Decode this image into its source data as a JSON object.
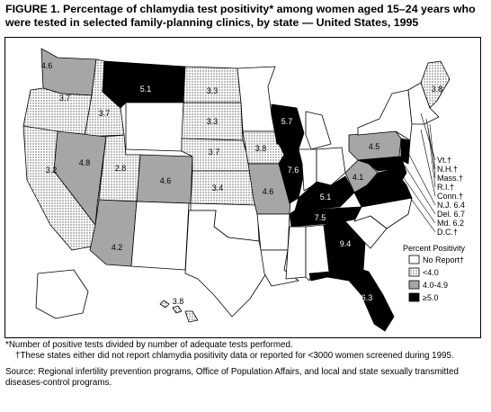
{
  "title": "FIGURE 1. Percentage of chlamydia test positivity* among women aged 15–24 years who were tested in selected family-planning clinics, by state — United States, 1995",
  "legend": {
    "title": "Percent Positivity",
    "items": [
      {
        "label": "No Report†",
        "pattern": "none"
      },
      {
        "label": "<4.0",
        "pattern": "dots"
      },
      {
        "label": "4.0-4.9",
        "pattern": "gray"
      },
      {
        "label": "≥5.0",
        "pattern": "black"
      }
    ]
  },
  "colors": {
    "none": "#ffffff",
    "gray": "#a6a6a6",
    "black": "#000000",
    "dots": "#bdbdbd"
  },
  "state_values": [
    {
      "key": "WA",
      "value": "4.6"
    },
    {
      "key": "OR",
      "value": "3.7"
    },
    {
      "key": "CA",
      "value": "3.2"
    },
    {
      "key": "ID",
      "value": "3.7"
    },
    {
      "key": "NV",
      "value": "4.8"
    },
    {
      "key": "UT",
      "value": "2.8"
    },
    {
      "key": "AZ",
      "value": "4.2"
    },
    {
      "key": "MT",
      "value": "5.1"
    },
    {
      "key": "CO",
      "value": "4.6"
    },
    {
      "key": "ND",
      "value": "3.3"
    },
    {
      "key": "SD",
      "value": "3.3"
    },
    {
      "key": "NE",
      "value": "3.7"
    },
    {
      "key": "KS",
      "value": "3.4"
    },
    {
      "key": "IA",
      "value": "3.8"
    },
    {
      "key": "MO",
      "value": "4.6"
    },
    {
      "key": "WI",
      "value": "5.7"
    },
    {
      "key": "IL",
      "value": "7.6"
    },
    {
      "key": "KY",
      "value": "5.1"
    },
    {
      "key": "TN",
      "value": "7.5"
    },
    {
      "key": "GA",
      "value": "9.4"
    },
    {
      "key": "FL",
      "value": "6.3"
    },
    {
      "key": "WV",
      "value": "4.1"
    },
    {
      "key": "PA",
      "value": "4.5"
    },
    {
      "key": "ME",
      "value": "3.8"
    },
    {
      "key": "HI",
      "value": "3.8"
    }
  ],
  "east_list": [
    "Vt.†",
    "N.H.†",
    "Mass.†",
    "R.I.†",
    "Conn.†",
    "N.J. 6.4",
    "Del. 6.7",
    "Md. 6.2",
    "D.C.†"
  ],
  "footnotes": [
    "*Number of positive tests divided by number of adequate tests performed.",
    "†These states either did not report chlamydia positivity data or reported for <3000 women screened during 1995."
  ],
  "source": "Source: Regional infertility prevention programs, Office of Population Affairs, and local and state sexually transmitted diseases-control programs."
}
